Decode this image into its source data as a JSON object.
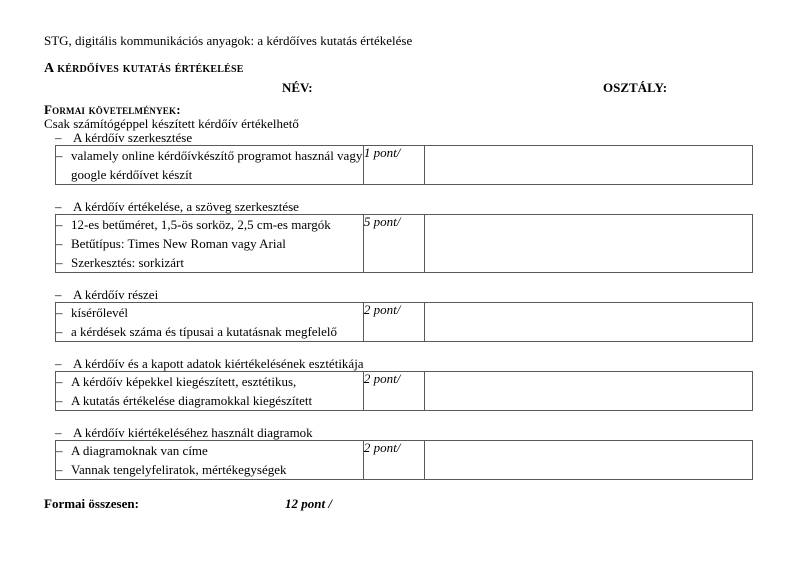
{
  "page": {
    "running_title": "STG, digitális kommunikációs anyagok: a kérdőíves kutatás értékelése",
    "title": "A kérdőíves kutatás értékelése",
    "name_label": "NÉV:",
    "class_label": "OSZTÁLY:",
    "requirements_heading": "Formai követelmények:",
    "requirements_note": "Csak számítógéppel készített kérdőív értékelhető",
    "bullet": "–",
    "text_color": "#000000",
    "table_border_color": "#595959"
  },
  "sections": [
    {
      "heading": "A kérdőív szerkesztése",
      "points": "1 pont/",
      "criteria": [
        "valamely online kérdőívkészítő programot használ vagy google kérdőívet készít"
      ]
    },
    {
      "heading": "A kérdőív értékelése, a szöveg szerkesztése",
      "points": "5 pont/",
      "criteria": [
        "12-es betűméret, 1,5-ös sorköz, 2,5 cm-es margók",
        "Betűtípus: Times New Roman vagy Arial",
        "Szerkesztés: sorkizárt"
      ]
    },
    {
      "heading": "A kérdőív részei",
      "points": "2 pont/",
      "criteria": [
        "kísérőlevél",
        "a kérdések száma és típusai a kutatásnak megfelelő"
      ]
    },
    {
      "heading": "A kérdőív és a kapott adatok kiértékelésének esztétikája",
      "points": "2 pont/",
      "criteria": [
        "A kérdőív képekkel kiegészített, esztétikus,",
        "A kutatás értékelése diagramokkal kiegészített"
      ]
    },
    {
      "heading": "A kérdőív kiértékeléséhez használt diagramok",
      "points": "2 pont/",
      "criteria": [
        "A diagramoknak van címe",
        "Vannak tengelyfeliratok, mértékegységek"
      ]
    }
  ],
  "summary": {
    "label": "Formai összesen:",
    "points": "12 pont /"
  }
}
